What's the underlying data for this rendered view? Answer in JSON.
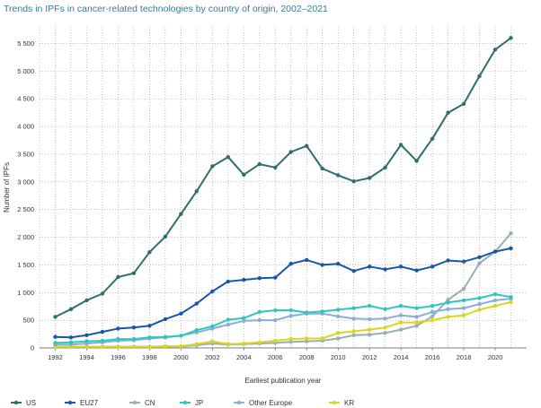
{
  "chart_data": {
    "type": "line",
    "title": "Trends in IPFs in cancer-related technologies by country of origin, 2002–2021",
    "xlabel": "Earliest publication year",
    "ylabel": "Number of IPFs",
    "xlim": [
      1991,
      2022
    ],
    "ylim": [
      0,
      5800
    ],
    "x_ticks": [
      1992,
      1994,
      1996,
      1998,
      2000,
      2002,
      2004,
      2006,
      2008,
      2010,
      2012,
      2014,
      2016,
      2018,
      2020
    ],
    "y_ticks": [
      0,
      500,
      1000,
      1500,
      2000,
      2500,
      3000,
      3500,
      4000,
      4500,
      5000,
      5500
    ],
    "y_tick_labels": [
      "0",
      "500",
      "1 000",
      "1 500",
      "2 000",
      "2 500",
      "3 000",
      "3 500",
      "4 000",
      "4 500",
      "5 000",
      "5 500"
    ],
    "grid": "dotted",
    "legend_position": "bottom",
    "x": [
      1992,
      1993,
      1994,
      1995,
      1996,
      1997,
      1998,
      1999,
      2000,
      2001,
      2002,
      2003,
      2004,
      2005,
      2006,
      2007,
      2008,
      2009,
      2010,
      2011,
      2012,
      2013,
      2014,
      2015,
      2016,
      2017,
      2018,
      2019,
      2020,
      2021
    ],
    "series": [
      {
        "name": "US",
        "color": "#2e6e6e",
        "values": [
          560,
          700,
          860,
          980,
          1280,
          1350,
          1730,
          2010,
          2420,
          2830,
          3280,
          3450,
          3130,
          3320,
          3260,
          3540,
          3650,
          3240,
          3120,
          3010,
          3070,
          3260,
          3670,
          3380,
          3780,
          4250,
          4410,
          4910,
          5390,
          5600
        ]
      },
      {
        "name": "EU27",
        "color": "#1a56a8",
        "values": [
          200,
          190,
          230,
          290,
          350,
          370,
          400,
          520,
          620,
          800,
          1020,
          1200,
          1230,
          1260,
          1270,
          1520,
          1590,
          1500,
          1520,
          1390,
          1470,
          1420,
          1470,
          1400,
          1470,
          1580,
          1560,
          1640,
          1740,
          1800
        ]
      },
      {
        "name": "CN",
        "color": "#9aaeb4",
        "values": [
          20,
          20,
          20,
          20,
          20,
          20,
          20,
          20,
          20,
          50,
          80,
          60,
          70,
          80,
          90,
          110,
          120,
          130,
          170,
          230,
          240,
          270,
          330,
          400,
          570,
          870,
          1070,
          1530,
          1740,
          2070
        ]
      },
      {
        "name": "JP",
        "color": "#2ec7bd",
        "values": [
          90,
          100,
          120,
          130,
          160,
          160,
          190,
          200,
          220,
          320,
          390,
          510,
          540,
          650,
          680,
          680,
          640,
          660,
          690,
          720,
          760,
          700,
          760,
          720,
          760,
          820,
          860,
          900,
          970,
          920
        ]
      },
      {
        "name": "Other Europe",
        "color": "#8aaed6",
        "values": [
          60,
          60,
          80,
          100,
          130,
          140,
          170,
          190,
          220,
          280,
          350,
          420,
          490,
          500,
          500,
          580,
          620,
          620,
          570,
          530,
          520,
          530,
          590,
          560,
          650,
          700,
          720,
          790,
          860,
          890
        ]
      },
      {
        "name": "KR",
        "color": "#d9d620",
        "values": [
          20,
          20,
          20,
          20,
          20,
          20,
          20,
          30,
          30,
          70,
          120,
          70,
          80,
          100,
          130,
          160,
          170,
          170,
          270,
          300,
          330,
          370,
          460,
          460,
          500,
          560,
          590,
          690,
          760,
          830
        ]
      }
    ]
  }
}
